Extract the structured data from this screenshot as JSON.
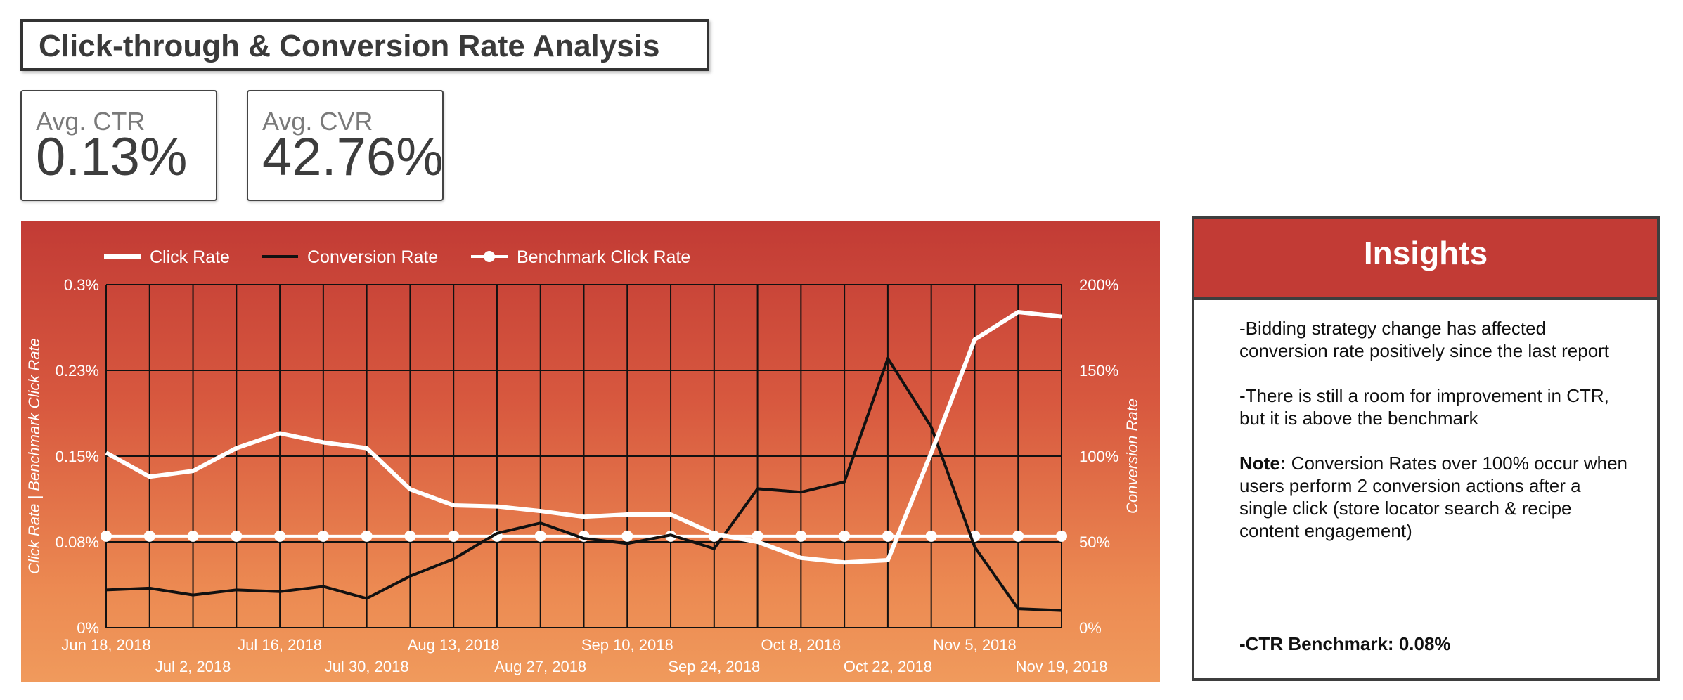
{
  "header": {
    "title": "Click-through & Conversion Rate Analysis"
  },
  "kpis": [
    {
      "label": "Avg. CTR",
      "value": "0.13%"
    },
    {
      "label": "Avg. CVR",
      "value": "42.76%"
    }
  ],
  "insights": {
    "title": "Insights",
    "paragraph_1": "-Bidding strategy change has affected conversion rate positively since the last report",
    "paragraph_2": "-There is still a room for improvement in CTR, but it is above the benchmark",
    "note_label": "Note:",
    "note_text": " Conversion Rates over 100% occur when users perform 2 conversion actions after a single click (store locator search & recipe content engagement)",
    "benchmark": "-CTR Benchmark: 0.08%"
  },
  "colors": {
    "accent_red": "#c23b35",
    "click_rate_line": "#ffffff",
    "conversion_rate_line": "#111111",
    "benchmark_line": "#ffffff"
  },
  "chart_data": {
    "type": "line",
    "x": [
      "Jun 18, 2018",
      "Jun 25, 2018",
      "Jul 2, 2018",
      "Jul 9, 2018",
      "Jul 16, 2018",
      "Jul 23, 2018",
      "Jul 30, 2018",
      "Aug 6, 2018",
      "Aug 13, 2018",
      "Aug 20, 2018",
      "Aug 27, 2018",
      "Sep 3, 2018",
      "Sep 10, 2018",
      "Sep 17, 2018",
      "Sep 24, 2018",
      "Oct 1, 2018",
      "Oct 8, 2018",
      "Oct 15, 2018",
      "Oct 22, 2018",
      "Oct 29, 2018",
      "Nov 5, 2018",
      "Nov 12, 2018",
      "Nov 19, 2018"
    ],
    "x_tick_labels": [
      "Jun 18, 2018",
      "Jul 2, 2018",
      "Jul 16, 2018",
      "Jul 30, 2018",
      "Aug 13, 2018",
      "Aug 27, 2018",
      "Sep 10, 2018",
      "Sep 24, 2018",
      "Oct 8, 2018",
      "Oct 22, 2018",
      "Nov 5, 2018",
      "Nov 19, 2018"
    ],
    "series": [
      {
        "name": "Click Rate",
        "axis": "left",
        "values": [
          0.153,
          0.132,
          0.137,
          0.157,
          0.17,
          0.162,
          0.157,
          0.121,
          0.107,
          0.106,
          0.102,
          0.097,
          0.099,
          0.099,
          0.082,
          0.075,
          0.061,
          0.057,
          0.059,
          0.153,
          0.252,
          0.276,
          0.272
        ]
      },
      {
        "name": "Conversion Rate",
        "axis": "right",
        "values": [
          22,
          23,
          19,
          22,
          21,
          24,
          17,
          30,
          40,
          55,
          61,
          52,
          49,
          54,
          46,
          81,
          79,
          85,
          157,
          117,
          47,
          11,
          10
        ]
      },
      {
        "name": "Benchmark Click Rate",
        "axis": "left",
        "values": [
          0.08,
          0.08,
          0.08,
          0.08,
          0.08,
          0.08,
          0.08,
          0.08,
          0.08,
          0.08,
          0.08,
          0.08,
          0.08,
          0.08,
          0.08,
          0.08,
          0.08,
          0.08,
          0.08,
          0.08,
          0.08,
          0.08,
          0.08
        ]
      }
    ],
    "ylabel_left": "Click Rate | Benchmark Click Rate",
    "ylabel_right": "Conversion Rate",
    "ylim_left": [
      0,
      0.3
    ],
    "ylim_right": [
      0,
      200
    ],
    "y_tick_labels_left": [
      "0%",
      "0.08%",
      "0.15%",
      "0.23%",
      "0.3%"
    ],
    "y_tick_labels_right": [
      "0%",
      "50%",
      "100%",
      "150%",
      "200%"
    ],
    "grid": true,
    "legend_position": "top-left"
  }
}
